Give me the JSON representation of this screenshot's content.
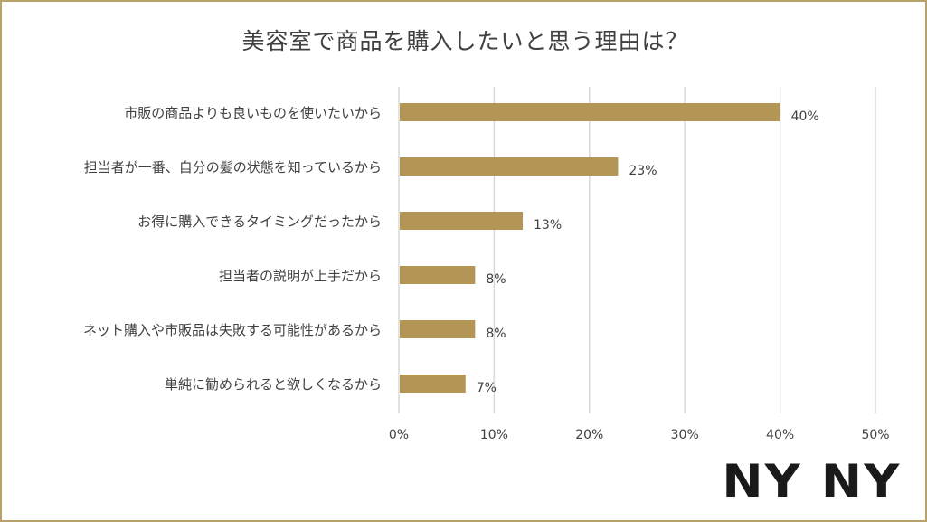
{
  "chart_data": {
    "type": "bar",
    "orientation": "horizontal",
    "title": "美容室で商品を購入したいと思う理由は？",
    "categories": [
      "市販の商品よりも良いものを使いたいから",
      "担当者が一番、自分の髪の状態を知っているから",
      "お得に購入できるタイミングだったから",
      "担当者の説明が上手だから",
      "ネット購入や市販品は失敗する可能性があるから",
      "単純に勧められると欲しくなるから"
    ],
    "values": [
      40,
      23,
      13,
      8,
      8,
      7
    ],
    "data_labels": [
      "40%",
      "23%",
      "13%",
      "8%",
      "8%",
      "7%"
    ],
    "xlim": [
      0,
      50
    ],
    "x_ticks": [
      0,
      10,
      20,
      30,
      40,
      50
    ],
    "x_tick_labels": [
      "0%",
      "10%",
      "20%",
      "30%",
      "40%",
      "50%"
    ],
    "xlabel": "",
    "ylabel": "",
    "grid": true,
    "legend": "none"
  },
  "colors": {
    "bar": "#b39656",
    "grid": "#d9d9d9",
    "text": "#404040",
    "frame": "#b7a269"
  },
  "brand": {
    "logo_text": "NY NY"
  }
}
